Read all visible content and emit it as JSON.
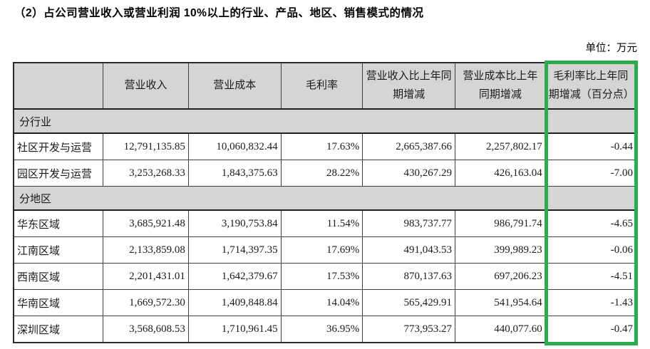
{
  "title": "（2）占公司营业收入或营业利润 10%以上的行业、产品、地区、销售模式的情况",
  "unit_label": "单位：万元",
  "table": {
    "columns": [
      "",
      "营业收入",
      "营业成本",
      "毛利率",
      "营业收入比上年同期增减",
      "营业成本比上年同期增减",
      "毛利率比上年同期增减（百分点）"
    ],
    "sections": [
      {
        "header": "分行业",
        "rows": [
          {
            "label": "社区开发与运营",
            "values": [
              "12,791,135.85",
              "10,060,832.44",
              "17.63%",
              "2,665,387.66",
              "2,257,802.17",
              "-0.44"
            ]
          },
          {
            "label": "园区开发与运营",
            "values": [
              "3,253,268.33",
              "1,843,375.63",
              "28.22%",
              "430,267.29",
              "426,163.04",
              "-7.00"
            ]
          }
        ]
      },
      {
        "header": "分地区",
        "rows": [
          {
            "label": "华东区域",
            "values": [
              "3,685,921.48",
              "3,190,753.84",
              "11.54%",
              "983,737.77",
              "986,791.74",
              "-4.65"
            ]
          },
          {
            "label": "江南区域",
            "values": [
              "2,133,859.08",
              "1,714,397.35",
              "17.69%",
              "491,043.53",
              "399,989.23",
              "-0.06"
            ]
          },
          {
            "label": "西南区域",
            "values": [
              "2,201,431.01",
              "1,642,379.67",
              "17.53%",
              "870,137.63",
              "697,206.23",
              "-4.51"
            ]
          },
          {
            "label": "华南区域",
            "values": [
              "1,669,572.30",
              "1,409,848.84",
              "14.04%",
              "565,429.91",
              "541,954.64",
              "-1.43"
            ]
          },
          {
            "label": "深圳区域",
            "values": [
              "3,568,608.53",
              "1,710,961.45",
              "36.95%",
              "773,953.27",
              "440,077.60",
              "-0.47"
            ]
          }
        ]
      }
    ]
  },
  "highlight": {
    "color": "#2bab4c",
    "highlighted_column": "毛利率比上年同期增减（百分点）"
  }
}
